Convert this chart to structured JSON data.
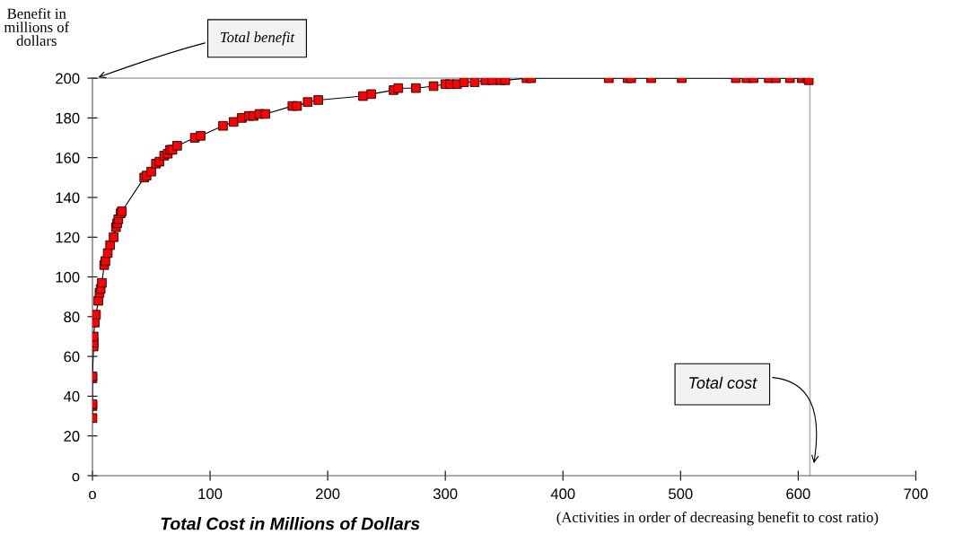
{
  "chart_data": {
    "type": "line",
    "xlabel": "Total Cost in Millions of Dollars",
    "ylabel": "Benefit in millions of dollars",
    "annotations": [
      "(Activities in order of decreasing benefit to cost ratio)"
    ],
    "x": [
      0,
      0,
      0,
      0,
      0,
      1,
      1,
      1,
      2,
      3,
      5,
      6,
      7,
      8,
      10,
      11,
      13,
      15,
      18,
      20,
      21,
      22,
      24,
      25,
      44,
      46,
      50,
      54,
      57,
      61,
      64,
      66,
      68,
      72,
      87,
      92,
      111,
      120,
      127,
      133,
      137,
      142,
      147,
      170,
      174,
      183,
      192,
      230,
      237,
      256,
      260,
      275,
      290,
      300,
      304,
      310,
      316,
      325,
      334,
      340,
      347,
      351,
      369,
      373,
      439,
      455,
      458,
      475,
      501,
      547,
      556,
      562,
      575,
      581,
      593,
      603,
      608,
      609
    ],
    "series": [
      {
        "color": "#ff0000",
        "marker": "square",
        "line_style": "solid",
        "values": [
          29,
          35,
          36,
          49,
          50,
          65,
          67,
          70,
          77,
          81,
          88,
          92,
          94,
          97,
          106,
          108,
          112,
          116,
          120,
          125,
          127,
          129,
          132,
          133,
          150,
          151,
          153,
          157,
          158,
          161,
          162,
          164,
          164,
          166,
          170,
          171,
          176,
          178,
          180,
          181,
          181,
          182,
          182,
          186,
          186,
          188,
          189,
          191,
          192,
          194,
          195,
          195,
          196,
          197,
          197,
          197,
          198,
          198,
          199,
          199,
          199,
          199,
          200,
          200,
          200,
          200,
          200,
          200,
          200,
          200,
          200,
          200,
          200,
          200,
          200,
          200,
          200,
          199
        ]
      }
    ],
    "xlim": [
      0,
      700
    ],
    "xticks": [
      {
        "value": 0,
        "label": "o"
      },
      100,
      200,
      300,
      400,
      500,
      600,
      700
    ],
    "ylim": [
      0,
      200
    ],
    "yticks": [
      {
        "value": 0,
        "label": "o"
      },
      20,
      40,
      60,
      80,
      100,
      120,
      140,
      160,
      180,
      200
    ],
    "ref_lines": [
      {
        "axis": "y",
        "value": 200,
        "label": "Total benefit",
        "color": "#b3b3b3"
      },
      {
        "axis": "x",
        "value": 610,
        "label": "Total cost",
        "color": "#b3b3b3"
      }
    ],
    "grid": false
  }
}
